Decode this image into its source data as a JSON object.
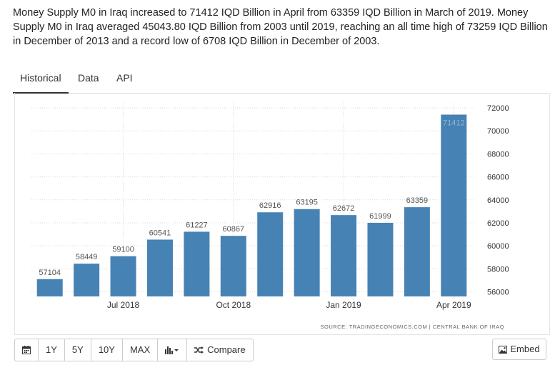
{
  "summary": "Money Supply M0 in Iraq increased to 71412 IQD Billion in April from 63359 IQD Billion in March of 2019. Money Supply M0 in Iraq averaged 45043.80 IQD Billion from 2003 until 2019, reaching an all time high of 73259 IQD Billion in December of 2013 and a record low of 6708 IQD Billion in December of 2003.",
  "tabs": [
    {
      "label": "Historical",
      "active": true
    },
    {
      "label": "Data",
      "active": false
    },
    {
      "label": "API",
      "active": false
    }
  ],
  "chart_data": {
    "type": "bar",
    "categories": [
      "May 2018",
      "Jun 2018",
      "Jul 2018",
      "Aug 2018",
      "Sep 2018",
      "Oct 2018",
      "Nov 2018",
      "Dec 2018",
      "Jan 2019",
      "Feb 2019",
      "Mar 2019",
      "Apr 2019"
    ],
    "values": [
      57104,
      58449,
      59100,
      60541,
      61227,
      60867,
      62916,
      63195,
      62672,
      61999,
      63359,
      71412
    ],
    "x_tick_labels": [
      {
        "index": 2,
        "label": "Jul 2018"
      },
      {
        "index": 5,
        "label": "Oct 2018"
      },
      {
        "index": 8,
        "label": "Jan 2019"
      },
      {
        "index": 11,
        "label": "Apr 2019"
      }
    ],
    "y_ticks": [
      56000,
      58000,
      60000,
      62000,
      64000,
      66000,
      68000,
      70000,
      72000
    ],
    "ylim": [
      55600,
      72000
    ],
    "y_axis_position": "right",
    "grid": true,
    "bar_color": "#4682b4",
    "source": "SOURCE: TRADINGECONOMICS.COM | CENTRAL BANK OF IRAQ"
  },
  "toolbar": {
    "calendar_icon": "calendar-icon",
    "buttons": [
      "1Y",
      "5Y",
      "10Y",
      "MAX"
    ],
    "chart_type_icon": "bar-chart-icon",
    "compare_label": "Compare",
    "compare_icon": "shuffle-icon"
  },
  "embed": {
    "label": "Embed",
    "icon": "image-icon"
  }
}
